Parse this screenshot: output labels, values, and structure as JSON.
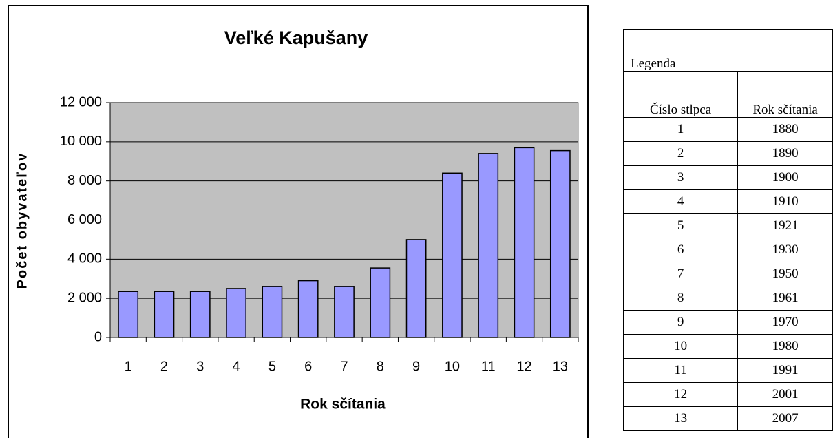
{
  "chart_data": {
    "type": "bar",
    "title": "Veľké Kapušany",
    "xlabel": "Rok sčítania",
    "ylabel": "Počet obyvateľov",
    "categories": [
      "1",
      "2",
      "3",
      "4",
      "5",
      "6",
      "7",
      "8",
      "9",
      "10",
      "11",
      "12",
      "13"
    ],
    "values": [
      2350,
      2350,
      2350,
      2500,
      2600,
      2900,
      2600,
      3550,
      5000,
      8400,
      9400,
      9700,
      9550
    ],
    "color": "#9999ff",
    "ylim": [
      0,
      12000
    ],
    "yticks": [
      0,
      {
        "value": 2000,
        "label": "2 000"
      },
      {
        "value": 4000,
        "label": "4 000"
      },
      {
        "value": 6000,
        "label": "6 000"
      },
      {
        "value": 8000,
        "label": "8 000"
      },
      {
        "value": 10000,
        "label": "10 000"
      },
      {
        "value": 12000,
        "label": "12 000"
      }
    ],
    "grid": true
  },
  "legend_table": {
    "title": "Legenda",
    "header": [
      "Číslo stlpca",
      "Rok sčítania"
    ],
    "rows": [
      [
        "1",
        "1880"
      ],
      [
        "2",
        "1890"
      ],
      [
        "3",
        "1900"
      ],
      [
        "4",
        "1910"
      ],
      [
        "5",
        "1921"
      ],
      [
        "6",
        "1930"
      ],
      [
        "7",
        "1950"
      ],
      [
        "8",
        "1961"
      ],
      [
        "9",
        "1970"
      ],
      [
        "10",
        "1980"
      ],
      [
        "11",
        "1991"
      ],
      [
        "12",
        "2001"
      ],
      [
        "13",
        "2007"
      ]
    ]
  }
}
